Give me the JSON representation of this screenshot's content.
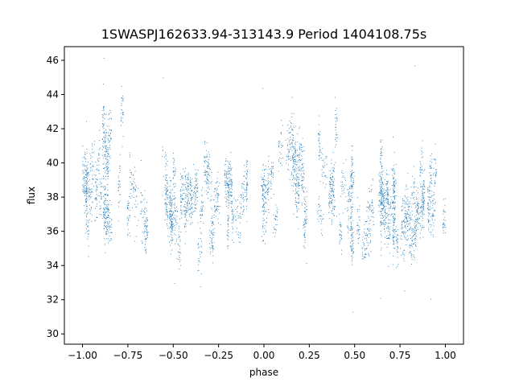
{
  "chart_data": {
    "type": "scatter",
    "title": "1SWASPJ162633.94-313143.9 Period 1404108.75s",
    "xlabel": "phase",
    "ylabel": "flux",
    "xlim": [
      -1.1,
      1.1
    ],
    "ylim": [
      29.4,
      46.8
    ],
    "x_ticks": [
      -1.0,
      -0.75,
      -0.5,
      -0.25,
      0.0,
      0.25,
      0.5,
      0.75,
      1.0
    ],
    "x_tick_labels": [
      "−1.00",
      "−0.75",
      "−0.50",
      "−0.25",
      "0.00",
      "0.25",
      "0.50",
      "0.75",
      "1.00"
    ],
    "y_ticks": [
      30,
      32,
      34,
      36,
      38,
      40,
      42,
      44,
      46
    ],
    "y_tick_labels": [
      "30",
      "32",
      "34",
      "36",
      "38",
      "40",
      "42",
      "44",
      "46"
    ],
    "grid": false,
    "legend": "none",
    "point_color": "#1f77b4",
    "light_curve_profile": [
      [
        0.0,
        38.5
      ],
      [
        0.05,
        38.0
      ],
      [
        0.1,
        39.6
      ],
      [
        0.15,
        39.0
      ],
      [
        0.2,
        38.3
      ],
      [
        0.25,
        39.9
      ],
      [
        0.3,
        38.7
      ],
      [
        0.35,
        37.6
      ],
      [
        0.4,
        38.8
      ],
      [
        0.45,
        38.4
      ],
      [
        0.5,
        37.9
      ],
      [
        0.55,
        37.2
      ],
      [
        0.6,
        38.0
      ],
      [
        0.65,
        38.3
      ],
      [
        0.7,
        37.6
      ],
      [
        0.75,
        37.0
      ],
      [
        0.8,
        37.1
      ],
      [
        0.85,
        37.3
      ],
      [
        0.9,
        37.6
      ],
      [
        0.95,
        38.2
      ],
      [
        1.0,
        38.5
      ]
    ],
    "scatter_sigma": 1.5,
    "phase_range": [
      -1.0,
      1.0
    ],
    "n_points": 4200
  }
}
